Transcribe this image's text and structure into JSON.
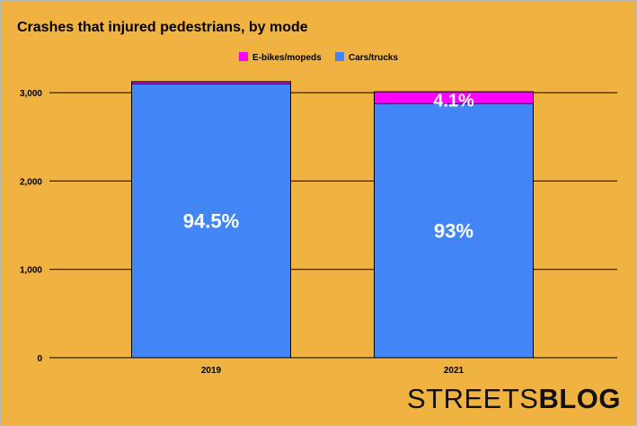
{
  "chart_data": {
    "type": "bar",
    "stacked": true,
    "title": "Crashes that injured pedestrians, by mode",
    "categories": [
      "2019",
      "2021"
    ],
    "series": [
      {
        "name": "Cars/trucks",
        "color": "#4285F4",
        "values": [
          3100,
          2875
        ],
        "labels": [
          "94.5%",
          "93%"
        ]
      },
      {
        "name": "E-bikes/mopeds",
        "color": "#FF00FF",
        "values": [
          25,
          135
        ],
        "labels": [
          "",
          "4.1%"
        ]
      }
    ],
    "xlabel": "",
    "ylabel": "",
    "ylim": [
      0,
      3200
    ],
    "yticks": [
      {
        "value": 0,
        "label": "0"
      },
      {
        "value": 1000,
        "label": "1,000"
      },
      {
        "value": 2000,
        "label": "2,000"
      },
      {
        "value": 3000,
        "label": "3,000"
      }
    ],
    "grid": true,
    "legend": "top-center"
  },
  "watermark": {
    "part1": "STREETS",
    "part2": "BLOG"
  }
}
